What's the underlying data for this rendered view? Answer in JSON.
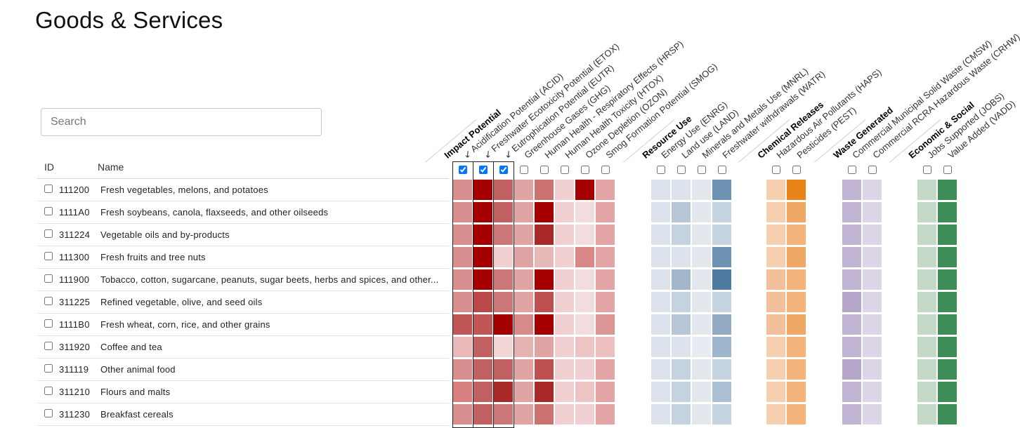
{
  "page": {
    "title": "Goods & Services"
  },
  "search": {
    "placeholder": "Search",
    "value": ""
  },
  "table": {
    "id_header": "ID",
    "name_header": "Name",
    "rows": [
      {
        "id": "111200",
        "name": "Fresh vegetables, melons, and potatoes",
        "checked": false
      },
      {
        "id": "1111A0",
        "name": "Fresh soybeans, canola, flaxseeds, and other oilseeds",
        "checked": false
      },
      {
        "id": "311224",
        "name": "Vegetable oils and by-products",
        "checked": false
      },
      {
        "id": "111300",
        "name": "Fresh fruits and tree nuts",
        "checked": false
      },
      {
        "id": "111900",
        "name": "Tobacco, cotton, sugarcane, peanuts, sugar beets, herbs and spices, and other...",
        "checked": false
      },
      {
        "id": "311225",
        "name": "Refined vegetable, olive, and seed oils",
        "checked": false
      },
      {
        "id": "1111B0",
        "name": "Fresh wheat, corn, rice, and other grains",
        "checked": false
      },
      {
        "id": "311920",
        "name": "Coffee and tea",
        "checked": false
      },
      {
        "id": "311119",
        "name": "Other animal food",
        "checked": false
      },
      {
        "id": "311210",
        "name": "Flours and malts",
        "checked": false
      },
      {
        "id": "311230",
        "name": "Breakfast cereals",
        "checked": false
      }
    ]
  },
  "groups": [
    {
      "label": "Impact Potential",
      "columns": [
        {
          "label": "↙ Acidification Potential (ACID)",
          "checked": true
        },
        {
          "label": "↙ Freshwater Ecotoxicity Potential (ETOX)",
          "checked": true
        },
        {
          "label": "↙ Eutrophication Potential (EUTR)",
          "checked": true
        },
        {
          "label": "Greenhouse Gases (GHG)",
          "checked": false
        },
        {
          "label": "Human Health - Respiratory Effects (HRSP)",
          "checked": false
        },
        {
          "label": "Human Health Toxicity (HTOX)",
          "checked": false
        },
        {
          "label": "Ozone Depletion (OZON)",
          "checked": false
        },
        {
          "label": "Smog Formation Potential (SMOG)",
          "checked": false
        }
      ]
    },
    {
      "label": "Resource Use",
      "columns": [
        {
          "label": "Energy Use (ENRG)",
          "checked": false
        },
        {
          "label": "Land use (LAND)",
          "checked": false
        },
        {
          "label": "Minerals and Metals Use (MNRL)",
          "checked": false
        },
        {
          "label": "Freshwater withdrawals (WATR)",
          "checked": false
        }
      ]
    },
    {
      "label": "Chemical Releases",
      "columns": [
        {
          "label": "Hazardous Air Pollutants (HAPS)",
          "checked": false
        },
        {
          "label": "Pesticides (PEST)",
          "checked": false
        }
      ]
    },
    {
      "label": "Waste Generated",
      "columns": [
        {
          "label": "Commercial Municipal Solid Waste (CMSW)",
          "checked": false
        },
        {
          "label": "Commercial RCRA Hazardous Waste (CRHW)",
          "checked": false
        }
      ]
    },
    {
      "label": "Economic & Social",
      "columns": [
        {
          "label": "Jobs Supported (JOBS)",
          "checked": false
        },
        {
          "label": "Value Added (VADD)",
          "checked": false
        }
      ]
    }
  ],
  "heatmap_colors": [
    [
      "#d88f8f",
      "#a50000",
      "#c06060",
      "#e0a4a4",
      "#cc7272",
      "#efcfcf",
      "#a50000",
      "#e2a4a4",
      "#dce3ec",
      "#dce3ec",
      "#e3e8ef",
      "#6d92b4",
      "#f6cfae",
      "#e88418",
      "#c1b3d2",
      "#dcd5e6",
      "#c3d8c6",
      "#3e8e58"
    ],
    [
      "#d88f8f",
      "#a50000",
      "#c06060",
      "#e0a4a4",
      "#a50000",
      "#efcfcf",
      "#f2dcdc",
      "#e2a4a4",
      "#dce3ec",
      "#b8c7d8",
      "#e3e8ef",
      "#c5d2df",
      "#f6cfae",
      "#f0a867",
      "#c1b3d2",
      "#dcd5e6",
      "#c3d8c6",
      "#3e8e58"
    ],
    [
      "#d88f8f",
      "#a50000",
      "#cc7777",
      "#e0a4a4",
      "#a92828",
      "#efcfcf",
      "#f2dcdc",
      "#e2a4a4",
      "#dce3ec",
      "#c5d2df",
      "#e3e8ef",
      "#c5d2df",
      "#f6cfae",
      "#f4b37a",
      "#c1b3d2",
      "#dcd5e6",
      "#c3d8c6",
      "#3e8e58"
    ],
    [
      "#d88f8f",
      "#a50000",
      "#efcfcf",
      "#e0a4a4",
      "#e6b8b8",
      "#efcfcf",
      "#d98888",
      "#e2a4a4",
      "#dce3ec",
      "#dce3ec",
      "#e3e8ef",
      "#6d92b4",
      "#f6cfae",
      "#f0a867",
      "#c1b3d2",
      "#dcd5e6",
      "#c3d8c6",
      "#3e8e58"
    ],
    [
      "#d88f8f",
      "#a50000",
      "#cc7777",
      "#e0a4a4",
      "#a50000",
      "#efcfcf",
      "#f2dcdc",
      "#e2a4a4",
      "#dce3ec",
      "#a2b6cc",
      "#e3e8ef",
      "#4f7ba0",
      "#f3c09b",
      "#f4b37a",
      "#c1b3d2",
      "#dcd5e6",
      "#c3d8c6",
      "#3e8e58"
    ],
    [
      "#d88f8f",
      "#bb4848",
      "#cc7777",
      "#e0a4a4",
      "#be5050",
      "#efcfcf",
      "#f2dcdc",
      "#e2a4a4",
      "#dce3ec",
      "#c5d2df",
      "#e3e8ef",
      "#c5d2df",
      "#f3c09b",
      "#f4b37a",
      "#b5a6c9",
      "#dcd5e6",
      "#c3d8c6",
      "#3e8e58"
    ],
    [
      "#c05656",
      "#c05656",
      "#a50000",
      "#d88a8a",
      "#a50000",
      "#efcfcf",
      "#f2dcdc",
      "#dc9595",
      "#dce3ec",
      "#b8c7d8",
      "#e3e8ef",
      "#93aac3",
      "#f3c09b",
      "#f0a867",
      "#c1b3d2",
      "#dcd5e6",
      "#c3d8c6",
      "#3e8e58"
    ],
    [
      "#eababa",
      "#c06060",
      "#f2d6d6",
      "#e6b3b3",
      "#e0a4a4",
      "#efcfcf",
      "#ecc4c4",
      "#ecc0c0",
      "#dce3ec",
      "#dce3ec",
      "#e8ecf2",
      "#9fb5cc",
      "#f6cfae",
      "#f4b37a",
      "#c1b3d2",
      "#dcd5e6",
      "#c3d8c6",
      "#3e8e58"
    ],
    [
      "#d88f8f",
      "#c06060",
      "#c06060",
      "#e0a4a4",
      "#be5050",
      "#efcfcf",
      "#efcfcf",
      "#e2a4a4",
      "#dce3ec",
      "#c5d2df",
      "#e3e8ef",
      "#c5d2df",
      "#f6cfae",
      "#f4b37a",
      "#b5a6c9",
      "#dcd5e6",
      "#c3d8c6",
      "#3e8e58"
    ],
    [
      "#d88080",
      "#c06060",
      "#a92828",
      "#e0a4a4",
      "#a92828",
      "#efcfcf",
      "#ecc4c4",
      "#e2a4a4",
      "#dce3ec",
      "#c5d2df",
      "#e3e8ef",
      "#abbfd3",
      "#f6cfae",
      "#f4b37a",
      "#c1b3d2",
      "#dcd5e6",
      "#c3d8c6",
      "#3e8e58"
    ],
    [
      "#d88f8f",
      "#c06060",
      "#cc7777",
      "#e0a4a4",
      "#cc7272",
      "#efcfcf",
      "#efcfcf",
      "#e2a4a4",
      "#dce3ec",
      "#c5d2df",
      "#e3e8ef",
      "#c5d2df",
      "#f6cfae",
      "#f4b37a",
      "#c1b3d2",
      "#dcd5e6",
      "#c3d8c6",
      "#3e8e58"
    ]
  ],
  "accent_colors": {
    "impact": "#a50000",
    "resource": "#4f7ba0",
    "chemical": "#e88418",
    "waste": "#b5a6c9",
    "economic": "#3e8e58"
  }
}
